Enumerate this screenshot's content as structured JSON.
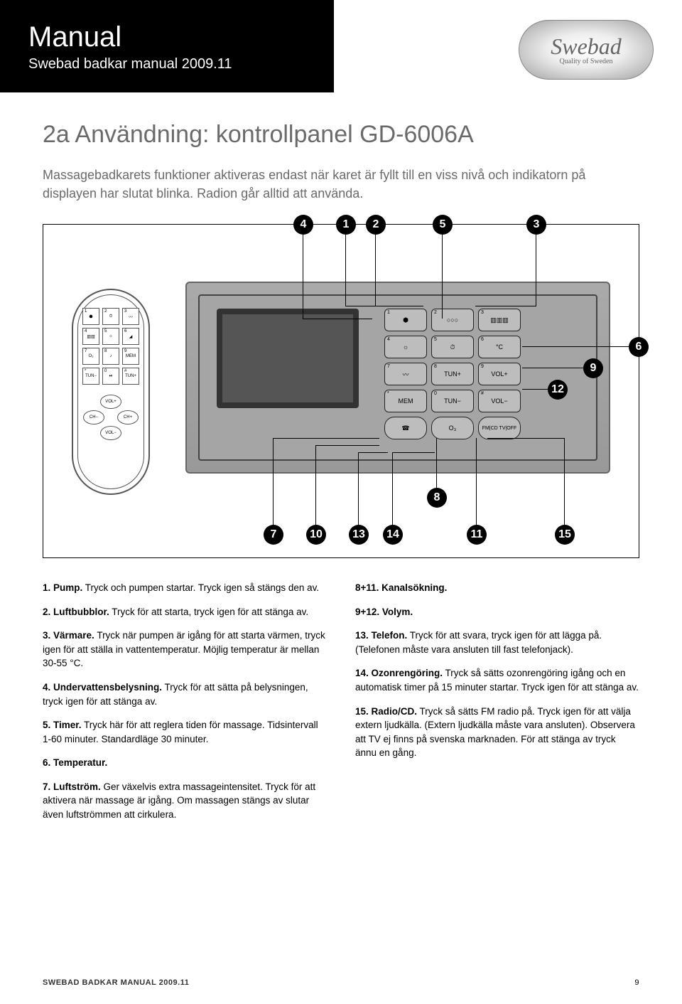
{
  "header": {
    "title": "Manual",
    "subtitle": "Swebad badkar manual 2009.11",
    "logo_brand": "Swebad",
    "logo_tag": "Quality of Sweden"
  },
  "section": {
    "title": "2a Användning: kontrollpanel GD-6006A",
    "intro": "Massagebadkarets funktioner aktiveras endast när karet är fyllt till en viss nivå och indikatorn på displayen har slutat blinka. Radion går alltid att använda."
  },
  "diagram": {
    "callouts_top": [
      "4",
      "1",
      "2",
      "5",
      "3"
    ],
    "callouts_right": [
      "6",
      "9",
      "12"
    ],
    "callouts_bottom": [
      "7",
      "10",
      "13",
      "14",
      "8",
      "11",
      "15"
    ],
    "remote_buttons": [
      {
        "n": "1",
        "l": "⬢"
      },
      {
        "n": "2",
        "l": "⏱"
      },
      {
        "n": "3",
        "l": "〰"
      },
      {
        "n": "4",
        "l": "▥▥"
      },
      {
        "n": "5",
        "l": "☼"
      },
      {
        "n": "6",
        "l": "◢"
      },
      {
        "n": "7",
        "l": "O₃"
      },
      {
        "n": "8",
        "l": "♪"
      },
      {
        "n": "9",
        "l": "MEM"
      },
      {
        "n": "*",
        "l": "TUN−"
      },
      {
        "n": "0",
        "l": "⏯"
      },
      {
        "n": "#",
        "l": "TUN+"
      }
    ],
    "remote_ctrl": {
      "up": "VOL+",
      "down": "VOL−",
      "left": "CH−",
      "right": "CH+"
    },
    "panel_buttons": [
      {
        "n": "1",
        "l": "⬢"
      },
      {
        "n": "2",
        "l": "○○○"
      },
      {
        "n": "3",
        "l": "▥▥▥"
      },
      {
        "n": "4",
        "l": "☼"
      },
      {
        "n": "5",
        "l": "⏱"
      },
      {
        "n": "6",
        "l": "°C"
      },
      {
        "n": "7",
        "l": "〰"
      },
      {
        "n": "8",
        "l": "TUN+"
      },
      {
        "n": "9",
        "l": "VOL+"
      },
      {
        "n": "*",
        "l": "MEM"
      },
      {
        "n": "0",
        "l": "TUN−"
      },
      {
        "n": "#",
        "l": "VOL−"
      },
      {
        "n": "",
        "l": "☎"
      },
      {
        "n": "",
        "l": "O₃"
      },
      {
        "n": "",
        "l": "FM|CD TV|OFF"
      }
    ]
  },
  "left_items": [
    {
      "b": "1. Pump.",
      "t": " Tryck och pumpen startar. Tryck igen så stängs den av."
    },
    {
      "b": "2. Luftbubblor.",
      "t": " Tryck för att starta, tryck igen för att stänga av."
    },
    {
      "b": "3. Värmare.",
      "t": " Tryck när pumpen är igång för att starta värmen, tryck igen för att ställa in vattentemperatur. Möjlig temperatur är mellan 30-55 °C."
    },
    {
      "b": "4. Undervattensbelysning.",
      "t": " Tryck för att sätta på belysningen, tryck igen för att stänga av."
    },
    {
      "b": "5. Timer.",
      "t": " Tryck här för att reglera tiden för massage. Tidsintervall 1-60 minuter. Standardläge 30 minuter."
    },
    {
      "b": "6. Temperatur.",
      "t": ""
    },
    {
      "b": "7. Luftström.",
      "t": " Ger växelvis extra massageintensitet. Tryck för att aktivera när massage är igång. Om massagen stängs av slutar även luftströmmen att cirkulera."
    }
  ],
  "right_items": [
    {
      "b": "8+11. Kanalsökning.",
      "t": ""
    },
    {
      "b": "9+12. Volym.",
      "t": ""
    },
    {
      "b": "13. Telefon.",
      "t": " Tryck för att svara, tryck igen för att lägga på. (Telefonen måste vara ansluten till fast telefonjack)."
    },
    {
      "b": "14. Ozonrengöring.",
      "t": " Tryck så sätts ozonrengöring igång och en automatisk timer på 15 minuter startar. Tryck igen för att stänga av."
    },
    {
      "b": "15. Radio/CD.",
      "t": " Tryck så sätts FM radio på. Tryck igen för att välja extern ljudkälla. (Extern ljudkälla måste vara ansluten). Observera att TV ej finns på svenska marknaden. För att stänga av tryck ännu en gång."
    }
  ],
  "footer": {
    "left": "SWEBAD BADKAR MANUAL 2009.11",
    "page": "9"
  }
}
